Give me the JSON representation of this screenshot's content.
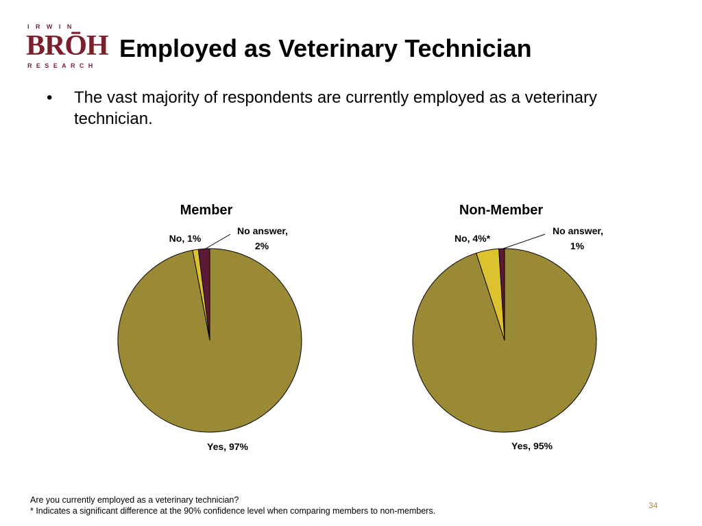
{
  "logo": {
    "top": "IRWIN",
    "main": "BRŌH",
    "bottom": "RESEARCH"
  },
  "title": "Employed as Veterinary Technician",
  "bullet": {
    "marker": "•",
    "text": "The vast majority of respondents are currently employed as a veterinary technician."
  },
  "colors": {
    "yes": "#9b8a35",
    "no": "#dcc22e",
    "no_answer": "#5c1a34",
    "page_number": "#b5892a"
  },
  "chart_data": [
    {
      "type": "pie",
      "title": "Member",
      "slices": [
        {
          "label": "Yes",
          "value": 97,
          "display": "Yes, 97%"
        },
        {
          "label": "No",
          "value": 1,
          "display": "No, 1%"
        },
        {
          "label": "No answer",
          "value": 2,
          "display": [
            "No answer,",
            "2%"
          ]
        }
      ]
    },
    {
      "type": "pie",
      "title": "Non-Member",
      "slices": [
        {
          "label": "Yes",
          "value": 95,
          "display": "Yes, 95%"
        },
        {
          "label": "No",
          "value": 4,
          "display": "No, 4%*"
        },
        {
          "label": "No answer",
          "value": 1,
          "display": [
            "No answer,",
            "1%"
          ]
        }
      ]
    }
  ],
  "footer": {
    "question": "Are you currently employed as a veterinary technician?",
    "note": "* Indicates a significant difference at the 90% confidence level when comparing members to non-members."
  },
  "page_number": "34"
}
